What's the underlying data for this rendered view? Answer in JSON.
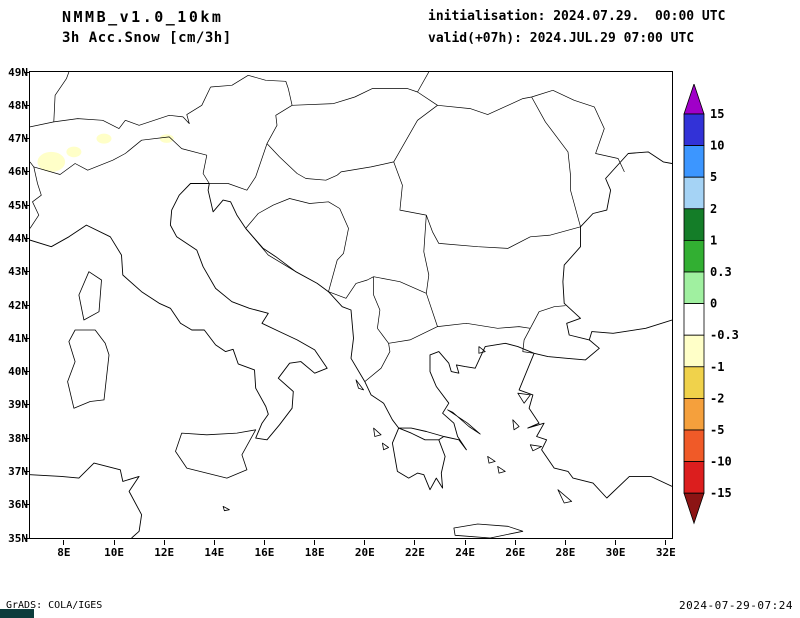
{
  "header": {
    "model": "NMMB_v1.0_10km",
    "variable": "3h Acc.Snow [cm/3h]",
    "init": "initialisation: 2024.07.29.  00:00 UTC",
    "valid": "valid(+07h): 2024.JUL.29 07:00 UTC"
  },
  "map": {
    "x_tick_labels": [
      "8E",
      "10E",
      "12E",
      "14E",
      "16E",
      "18E",
      "20E",
      "22E",
      "24E",
      "26E",
      "28E",
      "30E",
      "32E"
    ],
    "y_tick_labels": [
      "49N",
      "48N",
      "47N",
      "46N",
      "45N",
      "44N",
      "43N",
      "42N",
      "41N",
      "40N",
      "39N",
      "38N",
      "37N",
      "36N",
      "35N"
    ],
    "snow_patch_color": "#ffffc8",
    "snow_patches": [
      {
        "lon": 7.5,
        "lat": 46.3,
        "rx": 0.55,
        "ry": 0.3
      },
      {
        "lon": 8.4,
        "lat": 46.6,
        "rx": 0.3,
        "ry": 0.16
      },
      {
        "lon": 9.6,
        "lat": 47.0,
        "rx": 0.3,
        "ry": 0.15
      },
      {
        "lon": 12.1,
        "lat": 47.0,
        "rx": 0.28,
        "ry": 0.13
      }
    ]
  },
  "colorbar": {
    "labels": [
      "15",
      "10",
      "5",
      "2",
      "1",
      "0.3",
      "0",
      "-0.3",
      "-1",
      "-2",
      "-5",
      "-10",
      "-15"
    ],
    "segment_colors": [
      "#3232d7",
      "#3c96ff",
      "#a5d3f5",
      "#147d28",
      "#32af32",
      "#a0f0a0",
      "#ffffff",
      "#ffffc8",
      "#f0d24b",
      "#f5a03c",
      "#f05a28",
      "#dc1e1e"
    ],
    "arrow_top_color": "#a000c8",
    "arrow_bottom_color": "#8c1414"
  },
  "footer": {
    "credit": "GrADS: COLA/IGES",
    "timestamp": "2024-07-29-07:24"
  }
}
